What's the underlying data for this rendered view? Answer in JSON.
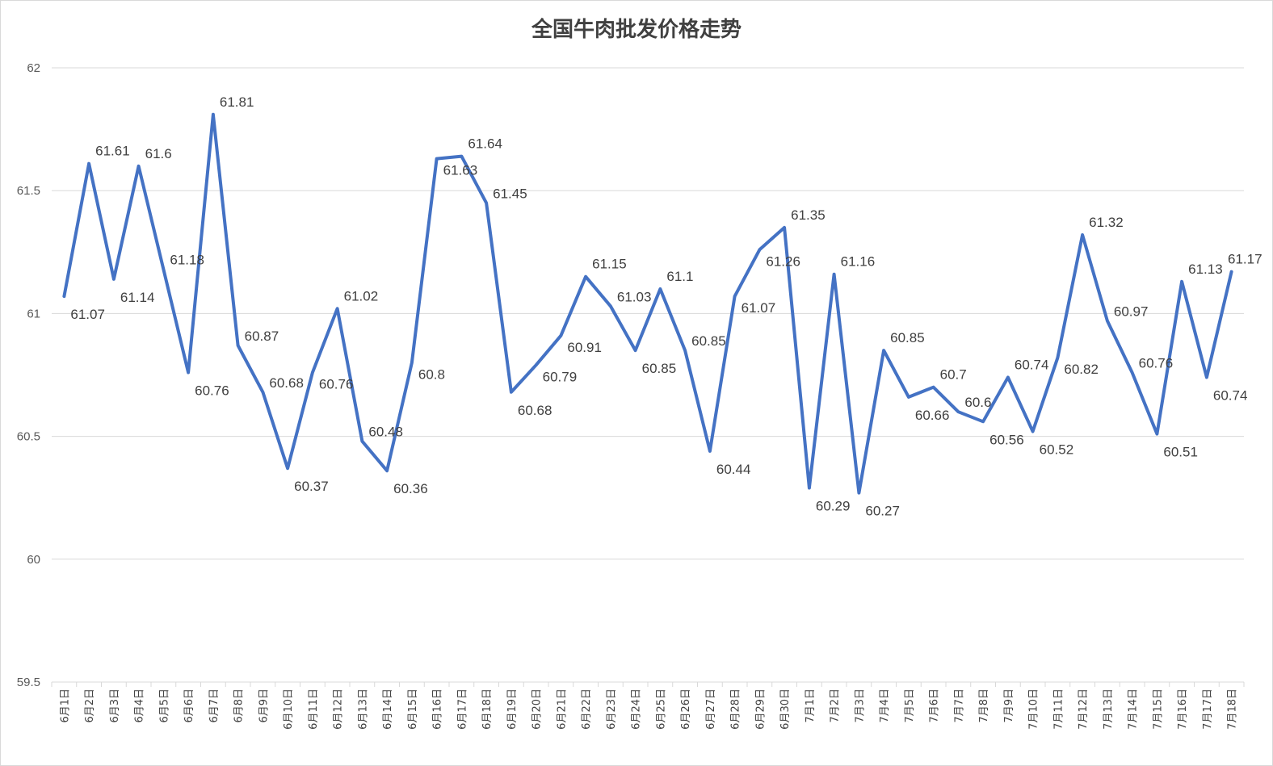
{
  "chart_data": {
    "type": "line",
    "title": "全国牛肉批发价格走势",
    "xlabel": "",
    "ylabel": "",
    "ylim": [
      59.5,
      62
    ],
    "yticks": [
      59.5,
      60,
      60.5,
      61,
      61.5,
      62
    ],
    "grid": true,
    "legend": "none",
    "categories": [
      "6月1日",
      "6月2日",
      "6月3日",
      "6月4日",
      "6月5日",
      "6月6日",
      "6月7日",
      "6月8日",
      "6月9日",
      "6月10日",
      "6月11日",
      "6月12日",
      "6月13日",
      "6月14日",
      "6月15日",
      "6月16日",
      "6月17日",
      "6月18日",
      "6月19日",
      "6月20日",
      "6月21日",
      "6月22日",
      "6月23日",
      "6月24日",
      "6月25日",
      "6月26日",
      "6月27日",
      "6月28日",
      "6月29日",
      "6月30日",
      "7月1日",
      "7月2日",
      "7月3日",
      "7月4日",
      "7月5日",
      "7月6日",
      "7月7日",
      "7月8日",
      "7月9日",
      "7月10日",
      "7月11日",
      "7月12日",
      "7月13日",
      "7月14日",
      "7月15日",
      "7月16日",
      "7月17日",
      "7月18日"
    ],
    "values": [
      61.07,
      61.61,
      61.14,
      61.6,
      61.18,
      60.76,
      61.81,
      60.87,
      60.68,
      60.37,
      60.76,
      61.02,
      60.48,
      60.36,
      60.8,
      61.63,
      61.64,
      61.45,
      60.68,
      60.79,
      60.91,
      61.15,
      61.03,
      60.85,
      61.1,
      60.85,
      60.44,
      61.07,
      61.26,
      61.35,
      60.29,
      61.16,
      60.27,
      60.85,
      60.66,
      60.7,
      60.6,
      60.56,
      60.74,
      60.52,
      60.82,
      61.32,
      60.97,
      60.76,
      60.51,
      61.13,
      60.74,
      61.17
    ],
    "data_labels": [
      "61.07",
      "61.61",
      "61.14",
      "61.6",
      "61.18",
      "60.76",
      "61.81",
      "60.87",
      "60.68",
      "60.37",
      "60.76",
      "61.02",
      "60.48",
      "60.36",
      "60.8",
      "61.63",
      "61.64",
      "61.45",
      "60.68",
      "60.79",
      "60.91",
      "61.15",
      "61.03",
      "60.85",
      "61.1",
      "60.85",
      "60.44",
      "61.07",
      "61.26",
      "61.35",
      "60.29",
      "61.16",
      "60.27",
      "60.85",
      "60.66",
      "60.7",
      "60.6",
      "60.56",
      "60.74",
      "60.52",
      "60.82",
      "61.32",
      "60.97",
      "60.76",
      "60.51",
      "61.13",
      "60.74",
      "61.17"
    ],
    "colors": {
      "line": "#4472c4",
      "grid": "#d9d9d9",
      "text": "#404040"
    }
  }
}
